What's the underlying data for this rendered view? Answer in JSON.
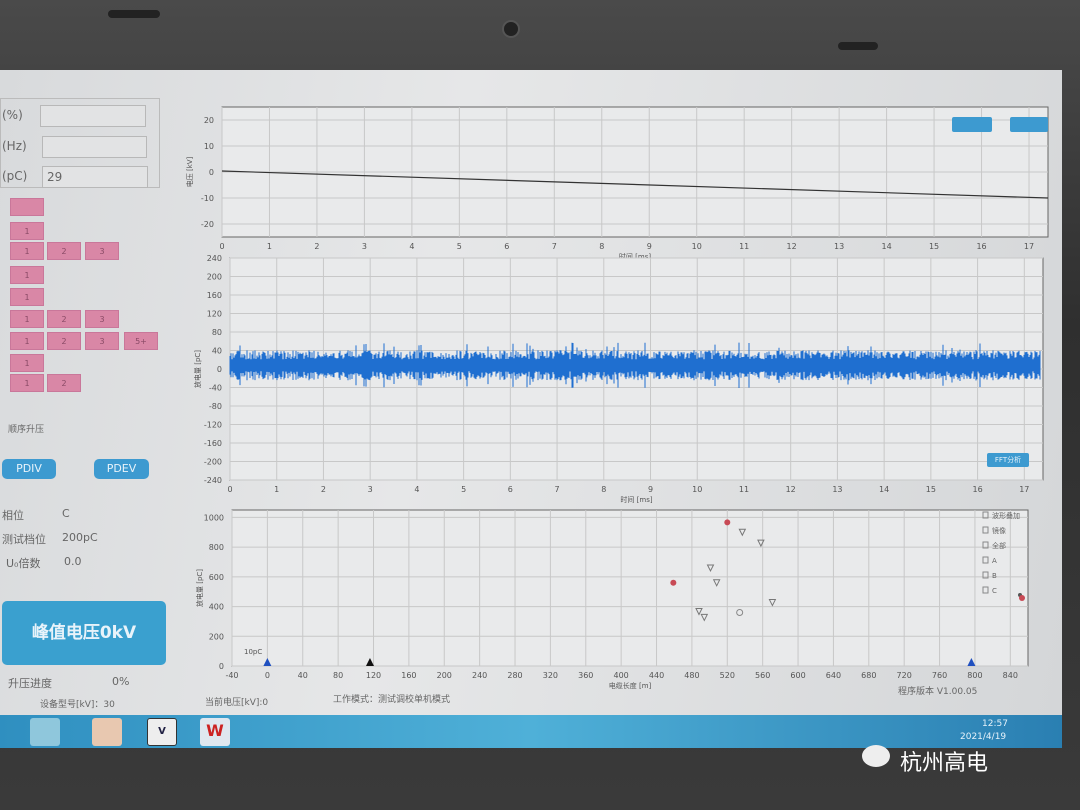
{
  "left_panel": {
    "fields": [
      {
        "label": "(%)",
        "value": ""
      },
      {
        "label": "(Hz)",
        "value": ""
      },
      {
        "label": "(pC)",
        "value": "29"
      }
    ],
    "grid_rows": [
      [
        ""
      ],
      [
        "1"
      ],
      [
        "1",
        "2",
        "3"
      ],
      [
        "1"
      ],
      [
        "1"
      ],
      [
        "1",
        "2",
        "3"
      ],
      [
        "1",
        "2",
        "3",
        "5+"
      ],
      [
        "1"
      ],
      [
        "1",
        "2"
      ]
    ],
    "mode_text": "顺序升压",
    "pdiv_label": "PDIV",
    "pdev_label": "PDEV",
    "selects": [
      {
        "label": "相位",
        "value": "C"
      },
      {
        "label": "测试档位",
        "value": "200pC"
      },
      {
        "label": "U₀倍数",
        "value": "0.0"
      }
    ],
    "peak_button": "峰值电压0kV",
    "progress_label": "升压进度",
    "progress_value": "0%",
    "progress_fraction": 0
  },
  "status_bar": {
    "device": "设备型号[kV]：30",
    "voltage": "当前电压[kV]:0",
    "work_mode": "工作模式：测试调校单机模式",
    "version": "程序版本  V1.00.05"
  },
  "top_chart": {
    "ylabel": "电压 [kV]",
    "xlabel": "时间 [ms]",
    "yticks": [
      20,
      10,
      0,
      -10,
      -20
    ],
    "xticks": [
      0,
      1,
      2,
      3,
      4,
      5,
      6,
      7,
      8,
      9,
      10,
      11,
      12,
      13,
      14,
      15,
      16,
      17
    ],
    "buttons": [
      "",
      ""
    ]
  },
  "middle_chart": {
    "ylabel": "放电量 [pC]",
    "xlabel": "时间 [ms]",
    "yticks": [
      240,
      200,
      160,
      120,
      80,
      40,
      0,
      -40,
      -80,
      -120,
      -160,
      -200,
      -240
    ],
    "xticks": [
      0,
      1,
      2,
      3,
      4,
      5,
      6,
      7,
      8,
      9,
      10,
      11,
      12,
      13,
      14,
      15,
      16,
      17
    ],
    "button": "FFT分析",
    "trace_color": "#1f6fd0"
  },
  "chart_data": {
    "type": "scatter",
    "xlabel": "电缆长度 [m]",
    "ylabel": "放电量 [pC]",
    "xlim": [
      -40,
      860
    ],
    "ylim": [
      0,
      1050
    ],
    "xticks": [
      -40,
      0,
      40,
      80,
      120,
      160,
      200,
      240,
      280,
      320,
      360,
      400,
      440,
      480,
      520,
      560,
      600,
      640,
      680,
      720,
      760,
      800,
      840
    ],
    "yticks": [
      0,
      200,
      400,
      600,
      800,
      1000
    ],
    "annotation": "10pC",
    "legend": [
      "波形叠加",
      "镜像",
      "全部",
      "A",
      "B",
      "C"
    ],
    "series": [
      {
        "name": "C",
        "marker": "circle-filled",
        "color": "#c84a55",
        "points": [
          [
            520,
            967
          ],
          [
            459,
            560
          ]
        ]
      },
      {
        "marker": "triangle-down",
        "color": "#777777",
        "points": [
          [
            537,
            900
          ],
          [
            558,
            827
          ],
          [
            501,
            660
          ],
          [
            508,
            560
          ],
          [
            571,
            427
          ],
          [
            488,
            367
          ],
          [
            494,
            327
          ]
        ]
      },
      {
        "marker": "circle-open",
        "color": "#888888",
        "points": [
          [
            534,
            360
          ]
        ]
      }
    ],
    "cursors": [
      {
        "x": 0,
        "color": "#2050c0"
      },
      {
        "x": 116,
        "color": "#111111"
      },
      {
        "x": 796,
        "color": "#2050c0"
      }
    ]
  },
  "taskbar": {
    "time": "12:57",
    "date": "2021/4/19"
  },
  "watermark": "杭州高电"
}
